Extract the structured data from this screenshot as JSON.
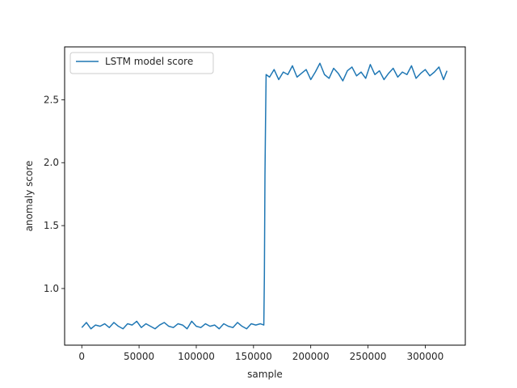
{
  "chart_data": {
    "type": "line",
    "xlabel": "sample",
    "ylabel": "anomaly score",
    "xlim": [
      -15000,
      335000
    ],
    "ylim": [
      0.55,
      2.92
    ],
    "grid": false,
    "legend_placement": "upper-left",
    "xticks": [
      {
        "value": 0,
        "label": "0"
      },
      {
        "value": 50000,
        "label": "50000"
      },
      {
        "value": 100000,
        "label": "100000"
      },
      {
        "value": 150000,
        "label": "150000"
      },
      {
        "value": 200000,
        "label": "200000"
      },
      {
        "value": 250000,
        "label": "250000"
      },
      {
        "value": 300000,
        "label": "300000"
      }
    ],
    "yticks": [
      {
        "value": 1.0,
        "label": "1.0"
      },
      {
        "value": 1.5,
        "label": "1.5"
      },
      {
        "value": 2.0,
        "label": "2.0"
      },
      {
        "value": 2.5,
        "label": "2.5"
      }
    ],
    "series": [
      {
        "name": "LSTM model score",
        "color": "#1f77b4",
        "x": [
          0,
          4000,
          8000,
          12000,
          16000,
          20000,
          24000,
          28000,
          32000,
          36000,
          40000,
          44000,
          48000,
          52000,
          56000,
          60000,
          64000,
          68000,
          72000,
          76000,
          80000,
          84000,
          88000,
          92000,
          96000,
          100000,
          104000,
          108000,
          112000,
          116000,
          120000,
          124000,
          128000,
          132000,
          136000,
          140000,
          144000,
          148000,
          152000,
          156000,
          159000,
          159500,
          160000,
          160500,
          161000,
          164000,
          168000,
          172000,
          176000,
          180000,
          184000,
          188000,
          192000,
          196000,
          200000,
          204000,
          208000,
          212000,
          216000,
          220000,
          224000,
          228000,
          232000,
          236000,
          240000,
          244000,
          248000,
          252000,
          256000,
          260000,
          264000,
          268000,
          272000,
          276000,
          280000,
          284000,
          288000,
          292000,
          296000,
          300000,
          304000,
          308000,
          312000,
          316000,
          319000
        ],
        "y": [
          0.69,
          0.73,
          0.68,
          0.71,
          0.7,
          0.72,
          0.69,
          0.73,
          0.7,
          0.68,
          0.72,
          0.71,
          0.74,
          0.69,
          0.72,
          0.7,
          0.68,
          0.71,
          0.73,
          0.7,
          0.69,
          0.72,
          0.71,
          0.68,
          0.74,
          0.7,
          0.69,
          0.72,
          0.7,
          0.71,
          0.68,
          0.72,
          0.7,
          0.69,
          0.73,
          0.7,
          0.68,
          0.72,
          0.71,
          0.72,
          0.71,
          1.1,
          1.9,
          2.32,
          2.7,
          2.68,
          2.74,
          2.66,
          2.72,
          2.7,
          2.77,
          2.68,
          2.71,
          2.74,
          2.66,
          2.72,
          2.79,
          2.7,
          2.67,
          2.75,
          2.71,
          2.65,
          2.73,
          2.76,
          2.69,
          2.72,
          2.67,
          2.78,
          2.7,
          2.73,
          2.66,
          2.71,
          2.75,
          2.68,
          2.72,
          2.7,
          2.77,
          2.67,
          2.71,
          2.74,
          2.69,
          2.72,
          2.76,
          2.66,
          2.73
        ]
      }
    ]
  }
}
